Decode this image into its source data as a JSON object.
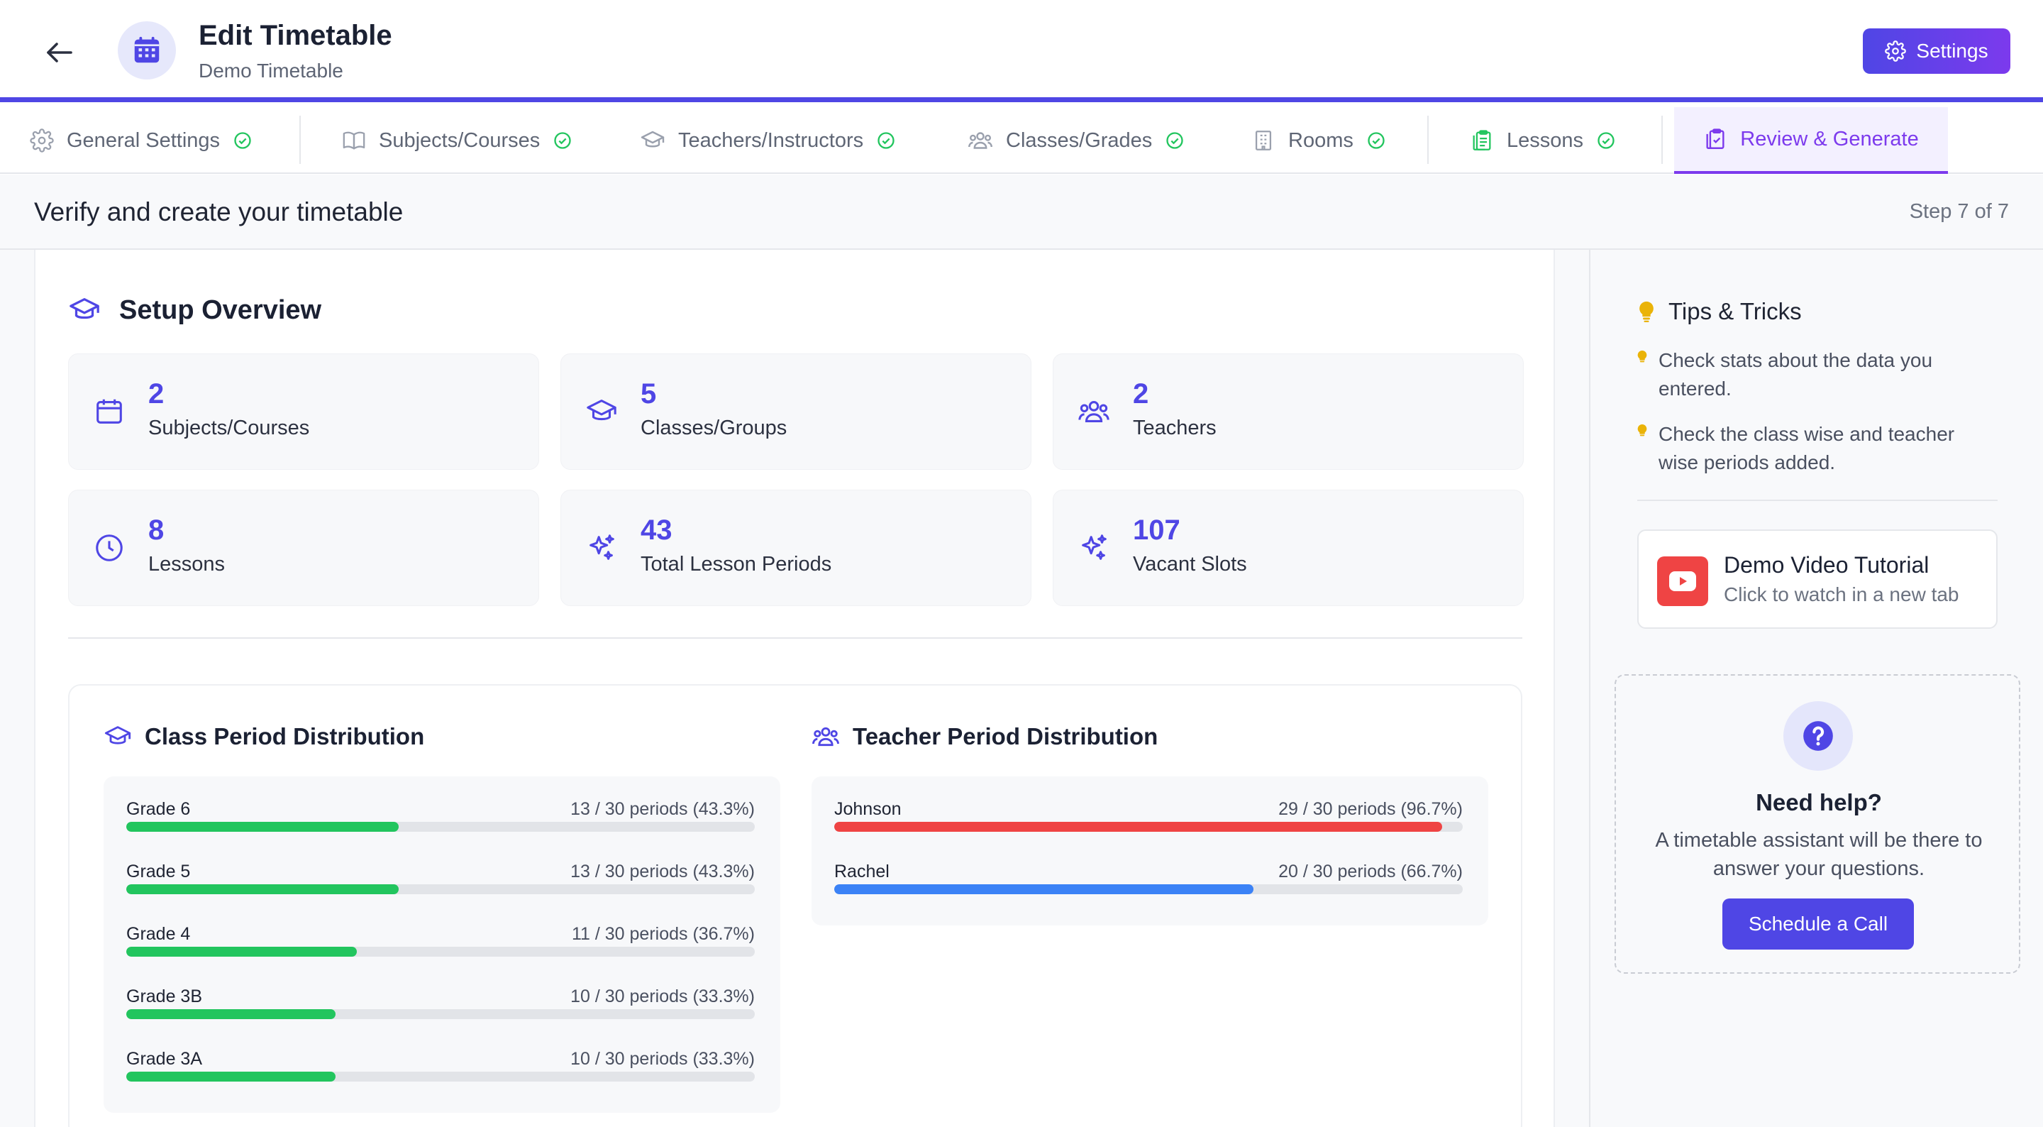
{
  "header": {
    "title": "Edit Timetable",
    "subtitle": "Demo Timetable",
    "settings_label": "Settings"
  },
  "tabs": [
    {
      "label": "General Settings",
      "icon": "gear-icon",
      "done": true
    },
    {
      "label": "Subjects/Courses",
      "icon": "book-icon",
      "done": true
    },
    {
      "label": "Teachers/Instructors",
      "icon": "graduation-cap-icon",
      "done": true
    },
    {
      "label": "Classes/Grades",
      "icon": "users-icon",
      "done": true
    },
    {
      "label": "Rooms",
      "icon": "building-icon",
      "done": true
    },
    {
      "label": "Lessons",
      "icon": "clipboard-list-icon",
      "done": true
    },
    {
      "label": "Review & Generate",
      "icon": "clipboard-check-icon",
      "active": true
    }
  ],
  "step": {
    "title": "Verify and create your timetable",
    "count": "Step 7 of 7"
  },
  "overview": {
    "title": "Setup Overview",
    "stats": [
      {
        "value": "2",
        "label": "Subjects/Courses",
        "icon": "calendar-icon"
      },
      {
        "value": "5",
        "label": "Classes/Groups",
        "icon": "graduation-cap-icon"
      },
      {
        "value": "2",
        "label": "Teachers",
        "icon": "users-icon"
      },
      {
        "value": "8",
        "label": "Lessons",
        "icon": "clock-icon"
      },
      {
        "value": "43",
        "label": "Total Lesson Periods",
        "icon": "sparkles-icon"
      },
      {
        "value": "107",
        "label": "Vacant Slots",
        "icon": "sparkles-icon"
      }
    ]
  },
  "class_distribution": {
    "title": "Class Period Distribution",
    "rows": [
      {
        "name": "Grade 6",
        "value": "13 / 30 periods (43.3%)",
        "fraction": 0.433,
        "color": "#22c55e"
      },
      {
        "name": "Grade 5",
        "value": "13 / 30 periods (43.3%)",
        "fraction": 0.433,
        "color": "#22c55e"
      },
      {
        "name": "Grade 4",
        "value": "11 / 30 periods (36.7%)",
        "fraction": 0.367,
        "color": "#22c55e"
      },
      {
        "name": "Grade 3B",
        "value": "10 / 30 periods (33.3%)",
        "fraction": 0.333,
        "color": "#22c55e"
      },
      {
        "name": "Grade 3A",
        "value": "10 / 30 periods (33.3%)",
        "fraction": 0.333,
        "color": "#22c55e"
      }
    ]
  },
  "teacher_distribution": {
    "title": "Teacher Period Distribution",
    "rows": [
      {
        "name": "Johnson",
        "value": "29 / 30 periods (96.7%)",
        "fraction": 0.967,
        "color": "#ef4444"
      },
      {
        "name": "Rachel",
        "value": "20 / 30 periods (66.7%)",
        "fraction": 0.667,
        "color": "#3b82f6"
      }
    ]
  },
  "tips": {
    "title": "Tips & Tricks",
    "items": [
      "Check stats about the data you entered.",
      "Check the class wise and teacher wise periods added."
    ]
  },
  "video": {
    "title": "Demo Video Tutorial",
    "subtitle": "Click to watch in a new tab"
  },
  "help": {
    "title": "Need help?",
    "text": "A timetable assistant will be there to answer your questions.",
    "button": "Schedule a Call"
  },
  "colors": {
    "accent": "#4f46e5",
    "accent_purple": "#7c3aed",
    "success": "#22c55e",
    "danger": "#ef4444",
    "info": "#3b82f6",
    "tip_yellow": "#eab308"
  }
}
